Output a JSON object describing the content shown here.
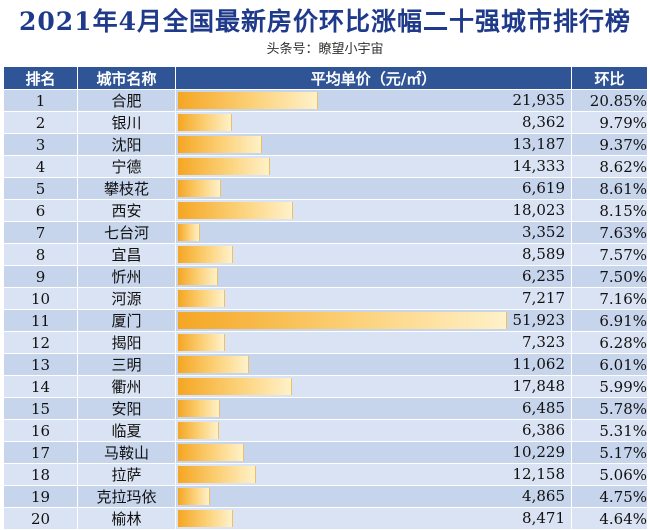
{
  "title": "2021年4月全国最新房价环比涨幅二十强城市排行榜",
  "subtitle": "头条号：瞭望小宇宙",
  "colors": {
    "header": "#2f5597",
    "row_odd": "#c6d4ec",
    "row_even": "#dae3f3",
    "pct": "#e0245e",
    "bar": "#f5a623"
  },
  "chart_data": {
    "type": "table",
    "columns": [
      "排名",
      "城市名称",
      "平均单价（元/㎡）",
      "环比"
    ],
    "bar_max": 51923,
    "rows": [
      {
        "rank": "1",
        "city": "合肥",
        "price": 21935,
        "price_text": "21,935",
        "mom": "20.85%"
      },
      {
        "rank": "2",
        "city": "银川",
        "price": 8362,
        "price_text": "8,362",
        "mom": "9.79%"
      },
      {
        "rank": "3",
        "city": "沈阳",
        "price": 13187,
        "price_text": "13,187",
        "mom": "9.37%"
      },
      {
        "rank": "4",
        "city": "宁德",
        "price": 14333,
        "price_text": "14,333",
        "mom": "8.62%"
      },
      {
        "rank": "5",
        "city": "攀枝花",
        "price": 6619,
        "price_text": "6,619",
        "mom": "8.61%"
      },
      {
        "rank": "6",
        "city": "西安",
        "price": 18023,
        "price_text": "18,023",
        "mom": "8.15%"
      },
      {
        "rank": "7",
        "city": "七台河",
        "price": 3352,
        "price_text": "3,352",
        "mom": "7.63%"
      },
      {
        "rank": "8",
        "city": "宜昌",
        "price": 8589,
        "price_text": "8,589",
        "mom": "7.57%"
      },
      {
        "rank": "9",
        "city": "忻州",
        "price": 6235,
        "price_text": "6,235",
        "mom": "7.50%"
      },
      {
        "rank": "10",
        "city": "河源",
        "price": 7217,
        "price_text": "7,217",
        "mom": "7.16%"
      },
      {
        "rank": "11",
        "city": "厦门",
        "price": 51923,
        "price_text": "51,923",
        "mom": "6.91%"
      },
      {
        "rank": "12",
        "city": "揭阳",
        "price": 7323,
        "price_text": "7,323",
        "mom": "6.28%"
      },
      {
        "rank": "13",
        "city": "三明",
        "price": 11062,
        "price_text": "11,062",
        "mom": "6.01%"
      },
      {
        "rank": "14",
        "city": "衢州",
        "price": 17848,
        "price_text": "17,848",
        "mom": "5.99%"
      },
      {
        "rank": "15",
        "city": "安阳",
        "price": 6485,
        "price_text": "6,485",
        "mom": "5.78%"
      },
      {
        "rank": "16",
        "city": "临夏",
        "price": 6386,
        "price_text": "6,386",
        "mom": "5.31%"
      },
      {
        "rank": "17",
        "city": "马鞍山",
        "price": 10229,
        "price_text": "10,229",
        "mom": "5.17%"
      },
      {
        "rank": "18",
        "city": "拉萨",
        "price": 12158,
        "price_text": "12,158",
        "mom": "5.06%"
      },
      {
        "rank": "19",
        "city": "克拉玛依",
        "price": 4865,
        "price_text": "4,865",
        "mom": "4.75%"
      },
      {
        "rank": "20",
        "city": "榆林",
        "price": 8471,
        "price_text": "8,471",
        "mom": "4.64%"
      }
    ]
  }
}
